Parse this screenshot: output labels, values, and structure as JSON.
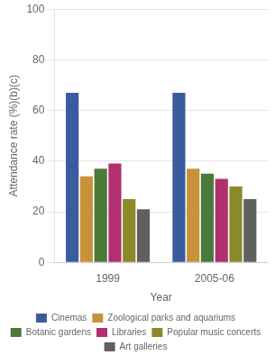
{
  "chart_data": {
    "type": "bar",
    "categories": [
      "1999",
      "2005-06"
    ],
    "series": [
      {
        "name": "Cinemas",
        "values": [
          67,
          67
        ],
        "color": "#3a5b9e"
      },
      {
        "name": "Zoological parks and aquariums",
        "values": [
          34,
          37
        ],
        "color": "#c8923a"
      },
      {
        "name": "Botanic gardens",
        "values": [
          37,
          35
        ],
        "color": "#4a7a3a"
      },
      {
        "name": "Libraries",
        "values": [
          39,
          33
        ],
        "color": "#b03070"
      },
      {
        "name": "Popular music concerts",
        "values": [
          25,
          30
        ],
        "color": "#8a8a2a"
      },
      {
        "name": "Art galleries",
        "values": [
          21,
          25
        ],
        "color": "#606060"
      }
    ],
    "xlabel": "Year",
    "ylabel": "Attendance rate (%)(b)(c)",
    "ylim": [
      0,
      100
    ],
    "yticks": [
      0,
      20,
      40,
      60,
      80,
      100
    ],
    "grid": true,
    "legend": "bottom"
  }
}
